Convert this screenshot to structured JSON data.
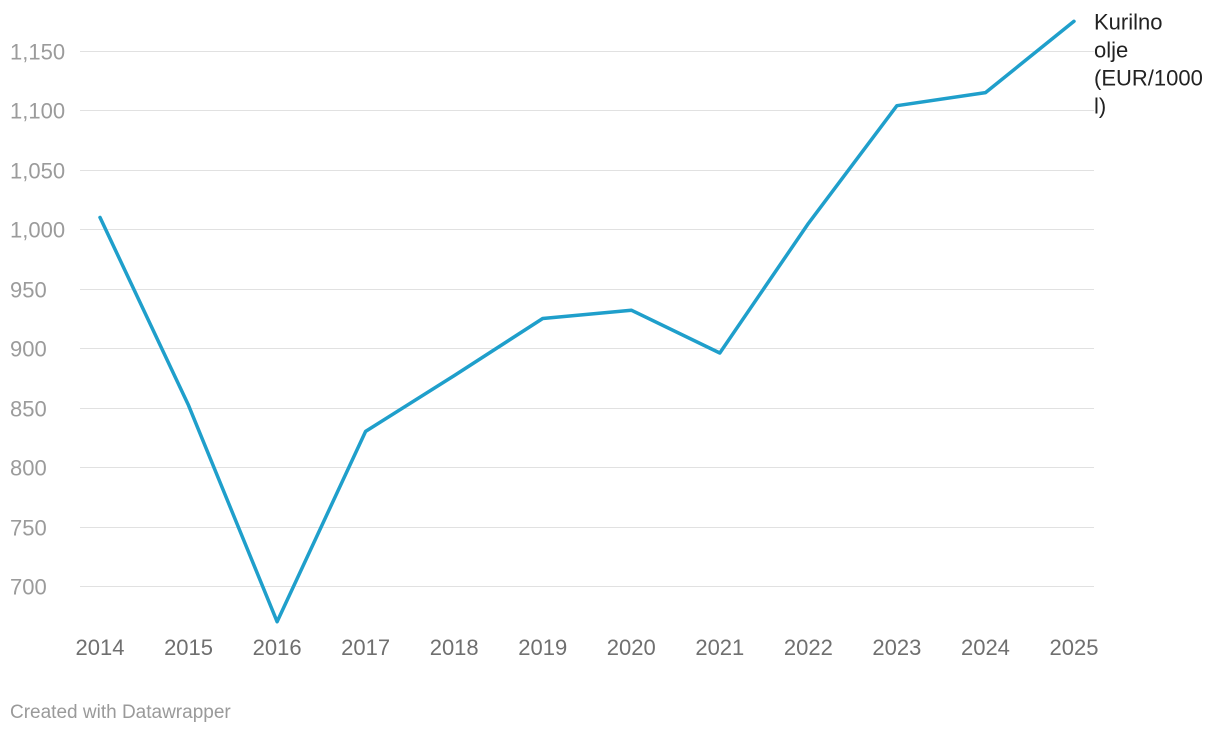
{
  "chart_data": {
    "type": "line",
    "title": "",
    "xlabel": "",
    "ylabel": "",
    "categories": [
      "2014",
      "2015",
      "2016",
      "2017",
      "2018",
      "2019",
      "2020",
      "2021",
      "2022",
      "2023",
      "2024",
      "2025"
    ],
    "series": [
      {
        "name": "Kurilno olje (EUR/1000 l)",
        "label_lines": [
          "Kurilno",
          "olje",
          "(EUR/1000",
          "l)"
        ],
        "color": "#1f9fcb",
        "values": [
          1010,
          852,
          670,
          830,
          877,
          925,
          932,
          896,
          1005,
          1104,
          1115,
          1175
        ]
      }
    ],
    "y_ticks": [
      700,
      750,
      800,
      850,
      900,
      950,
      1000,
      1050,
      1100,
      1150
    ],
    "y_tick_labels": [
      "700",
      "750",
      "800",
      "850",
      "900",
      "950",
      "1,000",
      "1,050",
      "1,100",
      "1,150"
    ],
    "ylim": [
      670,
      1175
    ],
    "grid": true,
    "legend": "direct label at line end (right)"
  },
  "credit": "Created with Datawrapper"
}
